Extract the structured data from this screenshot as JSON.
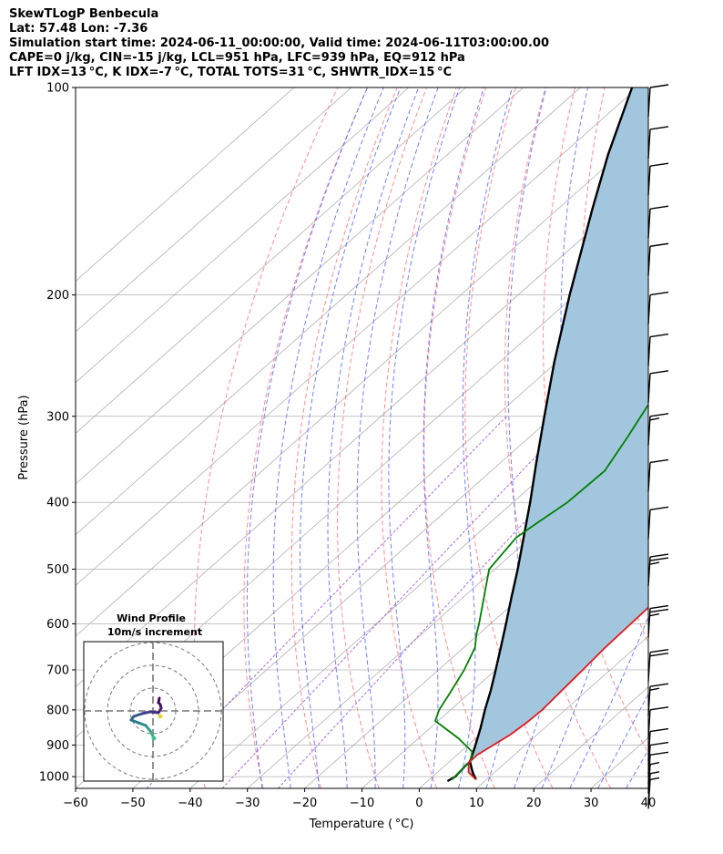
{
  "header": {
    "line1": "SkewTLogP Benbecula",
    "line2": "Lat: 57.48   Lon: -7.36",
    "line3": "Simulation start time: 2024-06-11_00:00:00, Valid time: 2024-06-11T03:00:00.00",
    "line4": "CAPE=0 j/kg, CIN=-15 j/kg, LCL=951 hPa, LFC=939 hPa, EQ=912 hPa",
    "line5": "LFT IDX=13 °C, K IDX=-7 °C, TOTAL TOTS=31 °C, SHWTR_IDX=15 °C"
  },
  "colors": {
    "temperature": "#e41a1c",
    "dewpoint": "#008000",
    "parcel": "#000000",
    "shade": "#a3c6df",
    "dry_adiabat": "#ff6666",
    "moist_adiabat": "#4d61ff",
    "mixing_ratio": "#9c4fd6",
    "isotherm": "#b0b0b0"
  },
  "chart_data": {
    "type": "line",
    "subtype": "skew-t log-p",
    "xlabel": "Temperature ( °C)",
    "ylabel": "Pressure (hPa)",
    "xlim": [
      -60,
      40
    ],
    "ylim": [
      1040,
      100
    ],
    "yscale": "log",
    "x_ticks": [
      "−60",
      "−50",
      "−40",
      "−30",
      "−20",
      "−10",
      "0",
      "10",
      "20",
      "30",
      "40"
    ],
    "x_tick_values": [
      -60,
      -50,
      -40,
      -30,
      -20,
      -10,
      0,
      10,
      20,
      30,
      40
    ],
    "y_ticks": [
      "100",
      "200",
      "300",
      "400",
      "500",
      "600",
      "700",
      "800",
      "900",
      "1000"
    ],
    "y_tick_values": [
      100,
      200,
      300,
      400,
      500,
      600,
      700,
      800,
      900,
      1000
    ],
    "grid": true,
    "series": [
      {
        "key": "temperature",
        "points": [
          [
            1010,
            8.2
          ],
          [
            985,
            5.4
          ],
          [
            955,
            3.6
          ],
          [
            930,
            3.5
          ],
          [
            900,
            4.4
          ],
          [
            870,
            5.3
          ],
          [
            835,
            5.8
          ],
          [
            800,
            6.0
          ],
          [
            750,
            5.6
          ],
          [
            700,
            5.2
          ],
          [
            650,
            4.7
          ],
          [
            600,
            4.5
          ],
          [
            555,
            4.3
          ],
          [
            500,
            2.3
          ],
          [
            450,
            0.5
          ],
          [
            400,
            -1.8
          ],
          [
            360,
            -3.0
          ],
          [
            320,
            -3.6
          ],
          [
            295,
            -5.0
          ],
          [
            285,
            -4.8
          ],
          [
            268,
            -2.0
          ],
          [
            250,
            2.0
          ],
          [
            225,
            10.0
          ],
          [
            200,
            16.0
          ],
          [
            180,
            22.0
          ],
          [
            160,
            25.0
          ],
          [
            140,
            26.0
          ],
          [
            120,
            27.5
          ],
          [
            100,
            30.0
          ]
        ]
      },
      {
        "key": "dewpoint",
        "points": [
          [
            1010,
            4.0
          ],
          [
            990,
            3.8
          ],
          [
            950,
            3.6
          ],
          [
            920,
            2.0
          ],
          [
            880,
            -3.0
          ],
          [
            830,
            -10.5
          ],
          [
            800,
            -12.0
          ],
          [
            760,
            -13.3
          ],
          [
            700,
            -15.5
          ],
          [
            650,
            -18.0
          ],
          [
            620,
            -20.5
          ],
          [
            600,
            -22.0
          ],
          [
            500,
            -31.0
          ],
          [
            450,
            -32.5
          ],
          [
            430,
            -31.8
          ],
          [
            400,
            -30.5
          ],
          [
            360,
            -30.2
          ],
          [
            320,
            -33.0
          ],
          [
            290,
            -35.5
          ],
          [
            260,
            -36.5
          ],
          [
            230,
            -38.5
          ],
          [
            210,
            -40.0
          ],
          [
            195,
            -44.0
          ],
          [
            185,
            -47.5
          ],
          [
            165,
            -44.0
          ],
          [
            140,
            -38.5
          ],
          [
            120,
            -33.5
          ],
          [
            100,
            -28.0
          ]
        ]
      },
      {
        "key": "parcel",
        "points": [
          [
            1010,
            8.2
          ],
          [
            990,
            6.5
          ],
          [
            970,
            5.0
          ],
          [
            951,
            3.6
          ],
          [
            900,
            1.3
          ],
          [
            850,
            -1.2
          ],
          [
            800,
            -4.0
          ],
          [
            750,
            -6.8
          ],
          [
            700,
            -10.0
          ],
          [
            650,
            -13.5
          ],
          [
            600,
            -17.3
          ],
          [
            550,
            -21.5
          ],
          [
            500,
            -26.0
          ],
          [
            450,
            -31.2
          ],
          [
            400,
            -37.0
          ],
          [
            350,
            -43.8
          ],
          [
            300,
            -51.5
          ],
          [
            250,
            -60.5
          ],
          [
            200,
            -71.0
          ],
          [
            150,
            -84.0
          ],
          [
            125,
            -92.0
          ],
          [
            100,
            -101.0
          ]
        ]
      },
      {
        "key": "parcel_lower",
        "points": [
          [
            1015,
            3.5
          ],
          [
            1000,
            4.0
          ],
          [
            985,
            3.8
          ],
          [
            960,
            3.6
          ],
          [
            951,
            3.6
          ]
        ]
      }
    ],
    "wind_barbs": [
      {
        "p": 1010,
        "speed_kt": 5
      },
      {
        "p": 990,
        "speed_kt": 5
      },
      {
        "p": 960,
        "speed_kt": 5
      },
      {
        "p": 930,
        "speed_kt": 10
      },
      {
        "p": 900,
        "speed_kt": 10
      },
      {
        "p": 860,
        "speed_kt": 10
      },
      {
        "p": 800,
        "speed_kt": 10
      },
      {
        "p": 740,
        "speed_kt": 15
      },
      {
        "p": 660,
        "speed_kt": 20
      },
      {
        "p": 570,
        "speed_kt": 25
      },
      {
        "p": 480,
        "speed_kt": 25
      },
      {
        "p": 410,
        "speed_kt": 10
      },
      {
        "p": 350,
        "speed_kt": 10
      },
      {
        "p": 300,
        "speed_kt": 15
      },
      {
        "p": 260,
        "speed_kt": 10
      },
      {
        "p": 230,
        "speed_kt": 10
      },
      {
        "p": 200,
        "speed_kt": 10
      },
      {
        "p": 170,
        "speed_kt": 10
      },
      {
        "p": 150,
        "speed_kt": 10
      },
      {
        "p": 130,
        "speed_kt": 10
      },
      {
        "p": 115,
        "speed_kt": 10
      },
      {
        "p": 100,
        "speed_kt": 10
      }
    ],
    "inset": {
      "title": "Wind Profile",
      "subtitle": "10m/s increment",
      "rings": 3,
      "hodograph": [
        [
          0.1,
          -3.0
        ],
        [
          0.0,
          -2.8
        ],
        [
          -0.3,
          -2.2
        ],
        [
          -0.8,
          -1.6
        ],
        [
          -1.6,
          -1.3
        ],
        [
          -2.4,
          -1.0
        ],
        [
          -2.1,
          -0.6
        ],
        [
          -1.2,
          -0.3
        ],
        [
          -0.3,
          -0.1
        ],
        [
          0.6,
          -0.2
        ],
        [
          0.9,
          0.3
        ],
        [
          0.8,
          0.7
        ],
        [
          0.6,
          0.9
        ],
        [
          0.7,
          1.4
        ]
      ]
    }
  }
}
